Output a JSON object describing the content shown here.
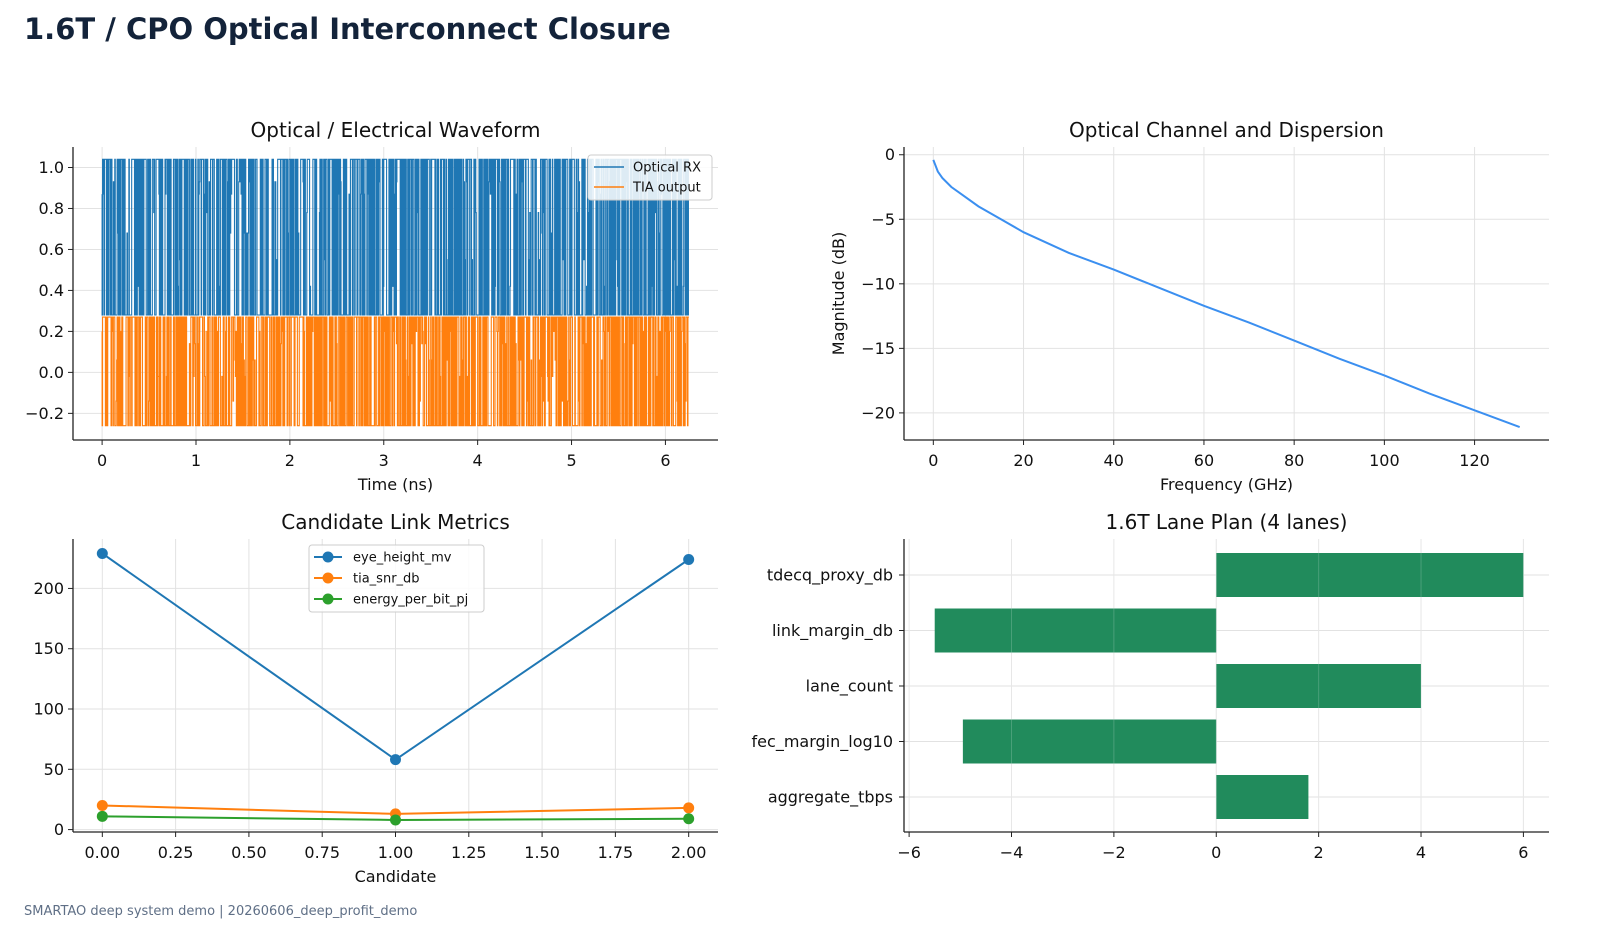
{
  "page": {
    "title": "1.6T / CPO Optical Interconnect Closure",
    "footer": "SMARTAO deep system demo | 20260606_deep_profit_demo"
  },
  "chart_data": [
    {
      "type": "line",
      "title": "Optical / Electrical Waveform",
      "xlabel": "Time (ns)",
      "ylabel": "",
      "xlim": [
        -0.31,
        6.56
      ],
      "ylim": [
        -0.33,
        1.1
      ],
      "xticks": [
        0,
        1,
        2,
        3,
        4,
        5,
        6
      ],
      "yticks": [
        -0.2,
        0.0,
        0.2,
        0.4,
        0.6,
        0.8,
        1.0
      ],
      "ytick_labels": [
        "−0.2",
        "0.0",
        "0.2",
        "0.4",
        "0.6",
        "0.8",
        "1.0"
      ],
      "grid": true,
      "legend": "top-right",
      "x_range": [
        0,
        6.25
      ],
      "series": [
        {
          "name": "Optical RX",
          "color": "#1f77b4",
          "levels": [
            0.28,
            0.42,
            0.55,
            0.68,
            0.78,
            0.87,
            0.93,
            1.04
          ],
          "envelope": [
            0.28,
            1.04
          ]
        },
        {
          "name": "TIA output",
          "color": "#ff7f0e",
          "levels": [
            -0.26,
            -0.14,
            -0.02,
            0.06,
            0.14,
            0.2,
            0.27
          ],
          "envelope": [
            -0.26,
            0.27
          ]
        }
      ]
    },
    {
      "type": "line",
      "title": "Optical Channel and Dispersion",
      "xlabel": "Frequency (GHz)",
      "ylabel": "Magnitude (dB)",
      "xlim": [
        -6.5,
        136.5
      ],
      "ylim": [
        -22.1,
        0.6
      ],
      "xticks": [
        0,
        20,
        40,
        60,
        80,
        100,
        120
      ],
      "yticks": [
        -20,
        -15,
        -10,
        -5,
        0
      ],
      "ytick_labels": [
        "−20",
        "−15",
        "−10",
        "−5",
        "0"
      ],
      "grid": true,
      "series": [
        {
          "name": "",
          "color": "#3b8ff0",
          "x": [
            0,
            1,
            2,
            4,
            6,
            10,
            15,
            20,
            30,
            40,
            50,
            60,
            70,
            80,
            90,
            100,
            110,
            120,
            130
          ],
          "y": [
            -0.4,
            -1.3,
            -1.8,
            -2.5,
            -3.0,
            -4.0,
            -5.0,
            -6.0,
            -7.6,
            -8.9,
            -10.3,
            -11.7,
            -13.0,
            -14.4,
            -15.8,
            -17.1,
            -18.5,
            -19.8,
            -21.1
          ]
        }
      ]
    },
    {
      "type": "line",
      "title": "Candidate Link Metrics",
      "xlabel": "Candidate",
      "ylabel": "",
      "xlim": [
        -0.1,
        2.1
      ],
      "ylim": [
        -2,
        241
      ],
      "xticks": [
        0,
        0.25,
        0.5,
        0.75,
        1.0,
        1.25,
        1.5,
        1.75,
        2.0
      ],
      "xtick_labels": [
        "0.00",
        "0.25",
        "0.50",
        "0.75",
        "1.00",
        "1.25",
        "1.50",
        "1.75",
        "2.00"
      ],
      "yticks": [
        0,
        50,
        100,
        150,
        200
      ],
      "grid": true,
      "legend": "upper-center",
      "x": [
        0,
        1,
        2
      ],
      "series": [
        {
          "name": "eye_height_mv",
          "color": "#1f77b4",
          "values": [
            229,
            58,
            224
          ]
        },
        {
          "name": "tia_snr_db",
          "color": "#ff7f0e",
          "values": [
            20,
            13,
            18
          ]
        },
        {
          "name": "energy_per_bit_pj",
          "color": "#2ca02c",
          "values": [
            11,
            8,
            9
          ]
        }
      ]
    },
    {
      "type": "bar",
      "orientation": "horizontal",
      "title": "1.6T Lane Plan (4 lanes)",
      "xlabel": "",
      "ylabel": "",
      "xlim": [
        -6.1,
        6.5
      ],
      "xticks": [
        -6,
        -4,
        -2,
        0,
        2,
        4,
        6
      ],
      "xtick_labels": [
        "−6",
        "−4",
        "−2",
        "0",
        "2",
        "4",
        "6"
      ],
      "grid": true,
      "color": "#218b5c",
      "categories": [
        "tdecq_proxy_db",
        "link_margin_db",
        "lane_count",
        "fec_margin_log10",
        "aggregate_tbps"
      ],
      "values": [
        6.0,
        -5.5,
        4.0,
        -4.95,
        1.8
      ]
    }
  ]
}
